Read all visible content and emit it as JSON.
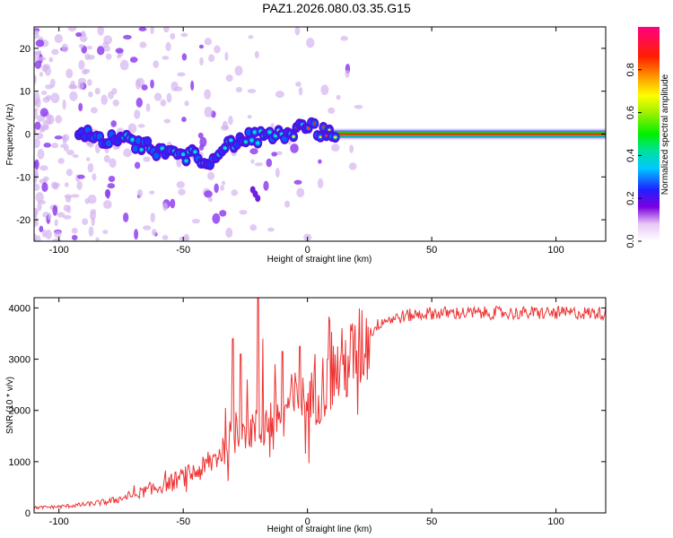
{
  "title": "PAZ1.2026.080.03.35.G15",
  "chart_data": [
    {
      "type": "heatmap",
      "name": "spectrogram",
      "xlabel": "Height of straight line (km)",
      "ylabel": "Frequency (Hz)",
      "xlim": [
        -110,
        120
      ],
      "ylim": [
        -25,
        25
      ],
      "xticks": [
        -100,
        -50,
        0,
        50,
        100
      ],
      "yticks": [
        -20,
        -10,
        0,
        10,
        20
      ],
      "colorbar": {
        "label": "Normalized spectral amplitude",
        "range": [
          0,
          1
        ],
        "ticks": [
          0,
          0.2,
          0.4,
          0.6,
          0.8
        ],
        "tick_labels": [
          "0.0",
          "0.2",
          "0.4",
          "0.6",
          "0.8"
        ]
      },
      "ridge": {
        "note": "frequency of the main signal ridge vs height",
        "x": [
          -90,
          -80,
          -70,
          -60,
          -50,
          -45,
          -40,
          -35,
          -30,
          -25,
          -20,
          -15,
          -10,
          -5,
          0,
          5,
          10,
          20,
          50,
          120
        ],
        "y": [
          0,
          -1,
          -2,
          -4,
          -5,
          -5,
          -6,
          -4,
          -2,
          -1,
          -1,
          -0.5,
          0,
          1,
          2,
          0.5,
          0,
          0,
          0,
          0
        ]
      }
    },
    {
      "type": "line",
      "name": "snr",
      "xlabel": "Height of straight line (km)",
      "ylabel": "SNR (10 * v/v)",
      "xlim": [
        -110,
        120
      ],
      "ylim": [
        0,
        4200
      ],
      "xticks": [
        -100,
        -50,
        0,
        50,
        100
      ],
      "yticks": [
        0,
        1000,
        2000,
        3000,
        4000
      ],
      "color": "#ee3333",
      "envelope": {
        "x": [
          -110,
          -100,
          -90,
          -80,
          -70,
          -60,
          -50,
          -40,
          -35,
          -30,
          -25,
          -20,
          -15,
          -10,
          -5,
          0,
          5,
          10,
          15,
          20,
          25,
          30,
          40,
          50,
          60,
          80,
          100,
          120
        ],
        "y": [
          100,
          120,
          160,
          220,
          350,
          500,
          700,
          900,
          1200,
          1500,
          1700,
          1600,
          1800,
          2000,
          2200,
          2100,
          2400,
          2700,
          2900,
          3100,
          3500,
          3750,
          3850,
          3900,
          3900,
          3900,
          3900,
          3900
        ]
      },
      "spikes": [
        {
          "x": -30,
          "y": 3400
        },
        {
          "x": -27,
          "y": 3100
        },
        {
          "x": -20,
          "y": 4200
        },
        {
          "x": -18,
          "y": 3400
        },
        {
          "x": -10,
          "y": 3150
        },
        {
          "x": -3,
          "y": 3250
        },
        {
          "x": 3,
          "y": 3100
        },
        {
          "x": 8,
          "y": 3000
        }
      ]
    }
  ]
}
